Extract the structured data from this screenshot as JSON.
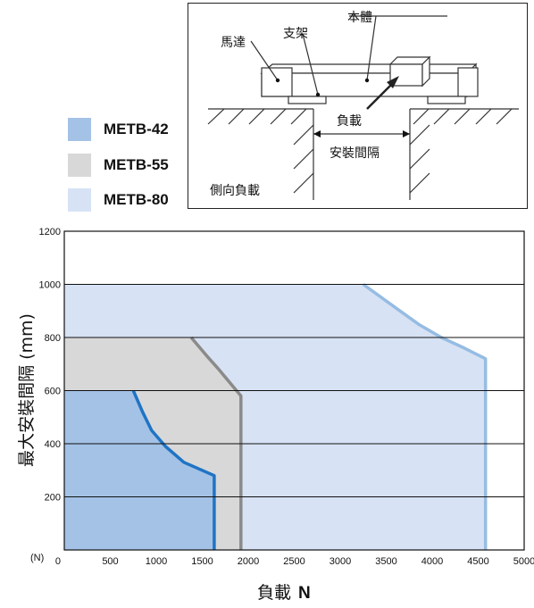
{
  "legend": [
    {
      "label": "METB-42",
      "color": "#a4c2e6"
    },
    {
      "label": "METB-55",
      "color": "#d8d8d8"
    },
    {
      "label": "METB-80",
      "color": "#d7e2f5"
    }
  ],
  "diagram": {
    "motor_label": "馬達",
    "bracket_label": "支架",
    "body_label": "本體",
    "load_label": "負載",
    "spacing_label": "安裝間隔",
    "caption": "側向負載"
  },
  "chart_data": {
    "type": "area",
    "xlabel_main": "負載",
    "xlabel_unit": "N",
    "ylabel": "最大安裝間隔 (mm)",
    "x_unit_tick": "(N)",
    "xlim": [
      0,
      5000
    ],
    "ylim": [
      0,
      1200
    ],
    "xticks": [
      0,
      500,
      1000,
      1500,
      2000,
      2500,
      3000,
      3500,
      4000,
      4500,
      5000
    ],
    "yticks": [
      200,
      400,
      600,
      800,
      1000,
      1200
    ],
    "grid": "horizontal",
    "series": [
      {
        "name": "METB-80",
        "fill": "#d7e2f5",
        "line": "#96bce2",
        "points": [
          [
            0,
            1000
          ],
          [
            3250,
            1000
          ],
          [
            3550,
            925
          ],
          [
            3850,
            850
          ],
          [
            4100,
            800
          ],
          [
            4350,
            760
          ],
          [
            4580,
            720
          ],
          [
            4580,
            0
          ]
        ]
      },
      {
        "name": "METB-55",
        "fill": "#d8d8d8",
        "line": "#8a8a8a",
        "points": [
          [
            0,
            800
          ],
          [
            1380,
            800
          ],
          [
            1550,
            730
          ],
          [
            1680,
            680
          ],
          [
            1800,
            630
          ],
          [
            1920,
            580
          ],
          [
            1920,
            0
          ]
        ]
      },
      {
        "name": "METB-42",
        "fill": "#a4c2e6",
        "line": "#1f74c4",
        "points": [
          [
            0,
            600
          ],
          [
            750,
            600
          ],
          [
            850,
            520
          ],
          [
            950,
            450
          ],
          [
            1100,
            390
          ],
          [
            1300,
            330
          ],
          [
            1500,
            300
          ],
          [
            1630,
            280
          ],
          [
            1630,
            0
          ]
        ]
      }
    ]
  }
}
